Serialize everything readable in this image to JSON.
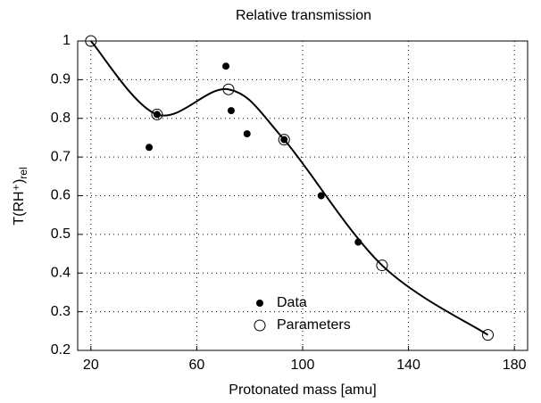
{
  "chart_data": {
    "type": "scatter",
    "title": "Relative transmission",
    "xlabel": "Protonated mass [amu]",
    "ylabel": "T(RH⁺)",
    "ylabel_sub": "rel",
    "xlim": [
      15,
      185
    ],
    "xticks": [
      20,
      60,
      100,
      140,
      180
    ],
    "ylim": [
      0.2,
      1.0
    ],
    "yticks": [
      0.2,
      0.3,
      0.4,
      0.5,
      0.6,
      0.7,
      0.8,
      0.9,
      1
    ],
    "grid": true,
    "series": [
      {
        "name": "Data",
        "color": "#000000",
        "marker": "filled",
        "x": [
          42,
          45,
          71,
          73,
          79,
          93,
          107,
          121
        ],
        "values": [
          0.725,
          0.81,
          0.935,
          0.82,
          0.76,
          0.745,
          0.6,
          0.48
        ]
      },
      {
        "name": "Parameters",
        "color": "#000000",
        "marker": "open",
        "curve": true,
        "x": [
          20,
          45,
          72,
          93,
          130,
          170
        ],
        "values": [
          1.0,
          0.81,
          0.875,
          0.745,
          0.42,
          0.24
        ]
      }
    ]
  }
}
